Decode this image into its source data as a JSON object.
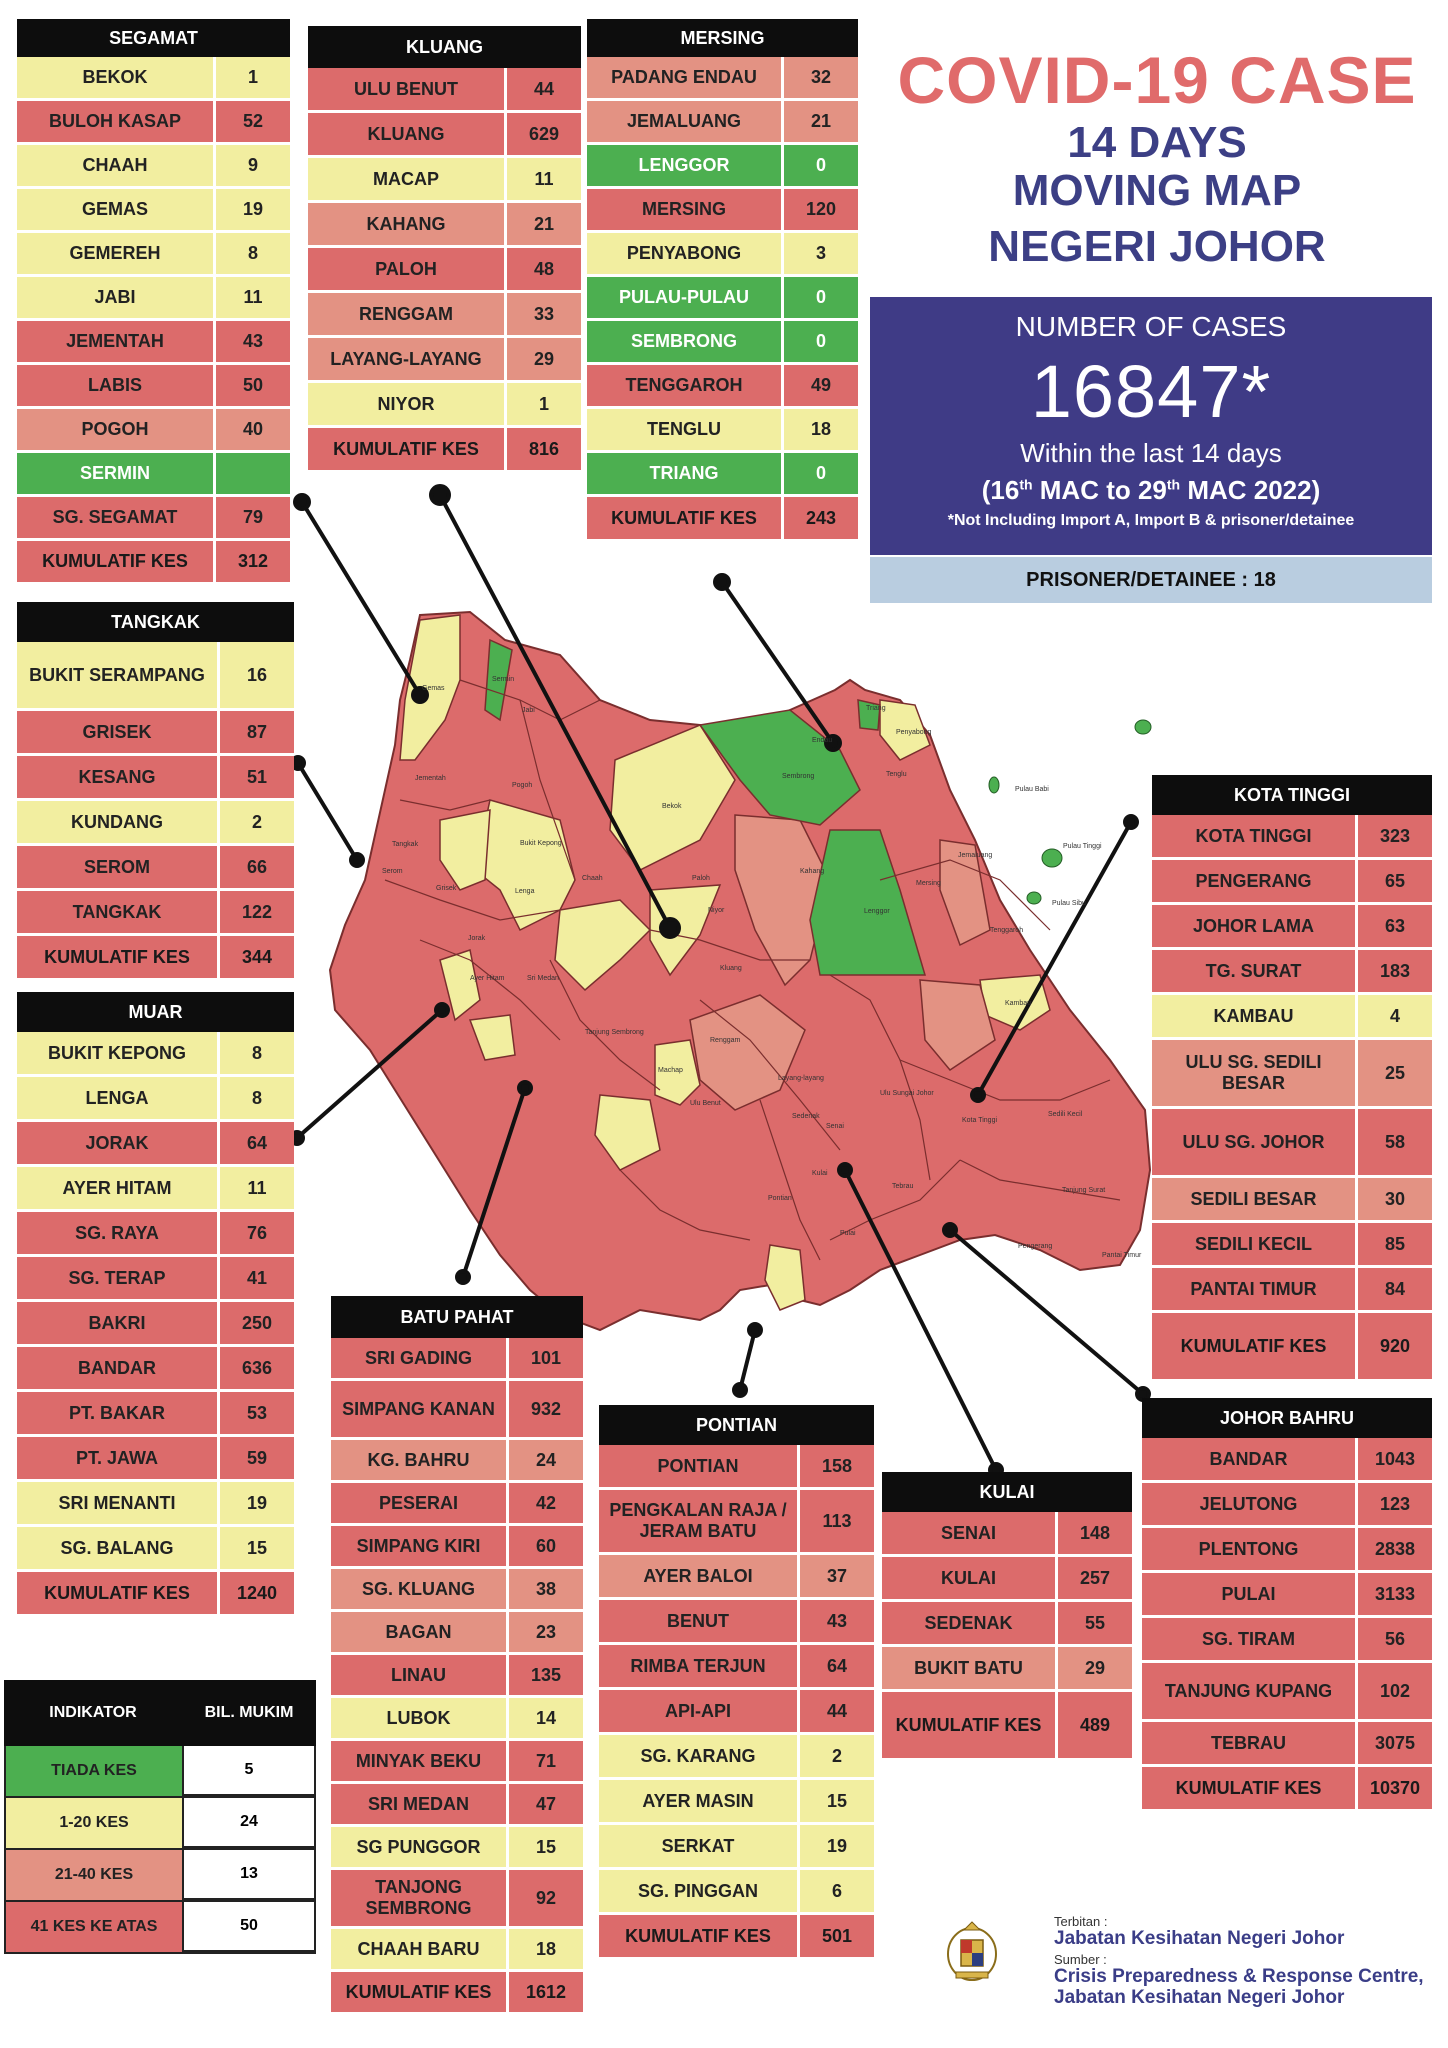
{
  "title": {
    "line1": "COVID-19 CASE",
    "line2": "14 DAYS",
    "line3": "MOVING MAP",
    "line4": "NEGERI JOHOR"
  },
  "cases": {
    "label": "NUMBER OF CASES",
    "total": "16847*",
    "within": "Within the last 14 days",
    "period_open": "(16",
    "period_sup1": "th",
    "period_mid": " MAC to 29",
    "period_sup2": "th",
    "period_close": " MAC 2022)",
    "note": "*Not Including Import A, Import B & prisoner/detainee",
    "prisoner": "PRISONER/DETAINEE : 18"
  },
  "colors": {
    "red": "#dc6b6b",
    "yellow": "#f2eea0",
    "salmon": "#e39283",
    "green": "#4caf50",
    "navy": "#3f3b86"
  },
  "districts": [
    {
      "id": "segamat",
      "name": "SEGAMAT",
      "rows": [
        {
          "n": "BEKOK",
          "v": "1",
          "c": "yel"
        },
        {
          "n": "BULOH KASAP",
          "v": "52",
          "c": "red"
        },
        {
          "n": "CHAAH",
          "v": "9",
          "c": "yel"
        },
        {
          "n": "GEMAS",
          "v": "19",
          "c": "yel"
        },
        {
          "n": "GEMEREH",
          "v": "8",
          "c": "yel"
        },
        {
          "n": "JABI",
          "v": "11",
          "c": "yel"
        },
        {
          "n": "JEMENTAH",
          "v": "43",
          "c": "red"
        },
        {
          "n": "LABIS",
          "v": "50",
          "c": "red"
        },
        {
          "n": "POGOH",
          "v": "40",
          "c": "sal"
        },
        {
          "n": "SERMIN",
          "v": "",
          "c": "grn"
        },
        {
          "n": "SG. SEGAMAT",
          "v": "79",
          "c": "red"
        },
        {
          "n": "KUMULATIF KES",
          "v": "312",
          "c": "red",
          "k": 1
        }
      ]
    },
    {
      "id": "kluang",
      "name": "KLUANG",
      "rows": [
        {
          "n": "ULU BENUT",
          "v": "44",
          "c": "red"
        },
        {
          "n": "KLUANG",
          "v": "629",
          "c": "red"
        },
        {
          "n": "MACAP",
          "v": "11",
          "c": "yel"
        },
        {
          "n": "KAHANG",
          "v": "21",
          "c": "sal"
        },
        {
          "n": "PALOH",
          "v": "48",
          "c": "red"
        },
        {
          "n": "RENGGAM",
          "v": "33",
          "c": "sal"
        },
        {
          "n": "LAYANG-LAYANG",
          "v": "29",
          "c": "sal"
        },
        {
          "n": "NIYOR",
          "v": "1",
          "c": "yel"
        },
        {
          "n": "KUMULATIF KES",
          "v": "816",
          "c": "red",
          "k": 1
        }
      ]
    },
    {
      "id": "mersing",
      "name": "MERSING",
      "rows": [
        {
          "n": "PADANG ENDAU",
          "v": "32",
          "c": "sal"
        },
        {
          "n": "JEMALUANG",
          "v": "21",
          "c": "sal"
        },
        {
          "n": "LENGGOR",
          "v": "0",
          "c": "grn"
        },
        {
          "n": "MERSING",
          "v": "120",
          "c": "red"
        },
        {
          "n": "PENYABONG",
          "v": "3",
          "c": "yel"
        },
        {
          "n": "PULAU-PULAU",
          "v": "0",
          "c": "grn"
        },
        {
          "n": "SEMBRONG",
          "v": "0",
          "c": "grn"
        },
        {
          "n": "TENGGAROH",
          "v": "49",
          "c": "red"
        },
        {
          "n": "TENGLU",
          "v": "18",
          "c": "yel"
        },
        {
          "n": "TRIANG",
          "v": "0",
          "c": "grn"
        },
        {
          "n": "KUMULATIF KES",
          "v": "243",
          "c": "red",
          "k": 1
        }
      ]
    },
    {
      "id": "tangkak",
      "name": "TANGKAK",
      "rows": [
        {
          "n": "BUKIT SERAMPANG",
          "v": "16",
          "c": "yel"
        },
        {
          "n": "GRISEK",
          "v": "87",
          "c": "red"
        },
        {
          "n": "KESANG",
          "v": "51",
          "c": "red"
        },
        {
          "n": "KUNDANG",
          "v": "2",
          "c": "yel"
        },
        {
          "n": "SEROM",
          "v": "66",
          "c": "red"
        },
        {
          "n": "TANGKAK",
          "v": "122",
          "c": "red"
        },
        {
          "n": "KUMULATIF KES",
          "v": "344",
          "c": "red",
          "k": 1
        }
      ]
    },
    {
      "id": "muar",
      "name": "MUAR",
      "rows": [
        {
          "n": "BUKIT KEPONG",
          "v": "8",
          "c": "yel"
        },
        {
          "n": "LENGA",
          "v": "8",
          "c": "yel"
        },
        {
          "n": "JORAK",
          "v": "64",
          "c": "red"
        },
        {
          "n": "AYER HITAM",
          "v": "11",
          "c": "yel"
        },
        {
          "n": "SG. RAYA",
          "v": "76",
          "c": "red"
        },
        {
          "n": "SG. TERAP",
          "v": "41",
          "c": "red"
        },
        {
          "n": "BAKRI",
          "v": "250",
          "c": "red"
        },
        {
          "n": "BANDAR",
          "v": "636",
          "c": "red"
        },
        {
          "n": "PT. BAKAR",
          "v": "53",
          "c": "red"
        },
        {
          "n": "PT. JAWA",
          "v": "59",
          "c": "red"
        },
        {
          "n": "SRI MENANTI",
          "v": "19",
          "c": "yel"
        },
        {
          "n": "SG. BALANG",
          "v": "15",
          "c": "yel"
        },
        {
          "n": "KUMULATIF KES",
          "v": "1240",
          "c": "red",
          "k": 1
        }
      ]
    },
    {
      "id": "kotatinggi",
      "name": "KOTA TINGGI",
      "rows": [
        {
          "n": "KOTA TINGGI",
          "v": "323",
          "c": "red"
        },
        {
          "n": "PENGERANG",
          "v": "65",
          "c": "red"
        },
        {
          "n": "JOHOR LAMA",
          "v": "63",
          "c": "red"
        },
        {
          "n": "TG. SURAT",
          "v": "183",
          "c": "red"
        },
        {
          "n": "KAMBAU",
          "v": "4",
          "c": "yel"
        },
        {
          "n": "ULU SG. SEDILI BESAR",
          "v": "25",
          "c": "sal"
        },
        {
          "n": "ULU  SG. JOHOR",
          "v": "58",
          "c": "red"
        },
        {
          "n": "SEDILI BESAR",
          "v": "30",
          "c": "sal"
        },
        {
          "n": "SEDILI KECIL",
          "v": "85",
          "c": "red"
        },
        {
          "n": "PANTAI TIMUR",
          "v": "84",
          "c": "red"
        },
        {
          "n": "KUMULATIF KES",
          "v": "920",
          "c": "red",
          "k": 1
        }
      ]
    },
    {
      "id": "batupahat",
      "name": "BATU PAHAT",
      "rows": [
        {
          "n": "SRI GADING",
          "v": "101",
          "c": "red"
        },
        {
          "n": "SIMPANG KANAN",
          "v": "932",
          "c": "red"
        },
        {
          "n": "KG. BAHRU",
          "v": "24",
          "c": "sal"
        },
        {
          "n": "PESERAI",
          "v": "42",
          "c": "red"
        },
        {
          "n": "SIMPANG KIRI",
          "v": "60",
          "c": "red"
        },
        {
          "n": "SG. KLUANG",
          "v": "38",
          "c": "sal"
        },
        {
          "n": "BAGAN",
          "v": "23",
          "c": "sal"
        },
        {
          "n": "LINAU",
          "v": "135",
          "c": "red"
        },
        {
          "n": "LUBOK",
          "v": "14",
          "c": "yel"
        },
        {
          "n": "MINYAK BEKU",
          "v": "71",
          "c": "red"
        },
        {
          "n": "SRI MEDAN",
          "v": "47",
          "c": "red"
        },
        {
          "n": "SG PUNGGOR",
          "v": "15",
          "c": "yel"
        },
        {
          "n": "TANJONG SEMBRONG",
          "v": "92",
          "c": "red"
        },
        {
          "n": "CHAAH BARU",
          "v": "18",
          "c": "yel"
        },
        {
          "n": "KUMULATIF KES",
          "v": "1612",
          "c": "red",
          "k": 1
        }
      ]
    },
    {
      "id": "pontian",
      "name": "PONTIAN",
      "rows": [
        {
          "n": "PONTIAN",
          "v": "158",
          "c": "red"
        },
        {
          "n": "PENGKALAN RAJA / JERAM BATU",
          "v": "113",
          "c": "red"
        },
        {
          "n": "AYER BALOI",
          "v": "37",
          "c": "sal"
        },
        {
          "n": "BENUT",
          "v": "43",
          "c": "red"
        },
        {
          "n": "RIMBA TERJUN",
          "v": "64",
          "c": "red"
        },
        {
          "n": "API-API",
          "v": "44",
          "c": "red"
        },
        {
          "n": "SG. KARANG",
          "v": "2",
          "c": "yel"
        },
        {
          "n": "AYER MASIN",
          "v": "15",
          "c": "yel"
        },
        {
          "n": "SERKAT",
          "v": "19",
          "c": "yel"
        },
        {
          "n": "SG. PINGGAN",
          "v": "6",
          "c": "yel"
        },
        {
          "n": "KUMULATIF KES",
          "v": "501",
          "c": "red",
          "k": 1
        }
      ]
    },
    {
      "id": "kulai",
      "name": "KULAI",
      "rows": [
        {
          "n": "SENAI",
          "v": "148",
          "c": "red"
        },
        {
          "n": "KULAI",
          "v": "257",
          "c": "red"
        },
        {
          "n": "SEDENAK",
          "v": "55",
          "c": "red"
        },
        {
          "n": "BUKIT BATU",
          "v": "29",
          "c": "sal"
        },
        {
          "n": "KUMULATIF KES",
          "v": "489",
          "c": "red",
          "k": 1
        }
      ]
    },
    {
      "id": "johorbahru",
      "name": "JOHOR BAHRU",
      "rows": [
        {
          "n": "BANDAR",
          "v": "1043",
          "c": "red"
        },
        {
          "n": "JELUTONG",
          "v": "123",
          "c": "red"
        },
        {
          "n": "PLENTONG",
          "v": "2838",
          "c": "red"
        },
        {
          "n": "PULAI",
          "v": "3133",
          "c": "red"
        },
        {
          "n": "SG. TIRAM",
          "v": "56",
          "c": "red"
        },
        {
          "n": "TANJUNG KUPANG",
          "v": "102",
          "c": "red"
        },
        {
          "n": "TEBRAU",
          "v": "3075",
          "c": "red"
        },
        {
          "n": "KUMULATIF KES",
          "v": "10370",
          "c": "red",
          "k": 1
        }
      ]
    }
  ],
  "legend": {
    "h1": "INDIKATOR",
    "h2": "BIL. MUKIM",
    "rows": [
      {
        "label": "TIADA KES",
        "count": "5",
        "c": "grn"
      },
      {
        "label": "1-20 KES",
        "count": "24",
        "c": "yel"
      },
      {
        "label": "21-40 KES",
        "count": "13",
        "c": "sal"
      },
      {
        "label": "41 KES KE ATAS",
        "count": "50",
        "c": "red"
      }
    ]
  },
  "credits": {
    "terbitan": "Terbitan :",
    "publisher": "Jabatan Kesihatan Negeri Johor",
    "sumber": "Sumber :",
    "source1": "Crisis Preparedness & Response Centre,",
    "source2": "Jabatan Kesihatan Negeri Johor"
  },
  "map_labels": [
    "Gemas",
    "Bukit Kepong",
    "Lenga",
    "Jementah",
    "Pogoh",
    "Jabi",
    "Sermin",
    "Bekok",
    "Paloh",
    "Kahang",
    "Lenggor",
    "Mersing",
    "Sembrong",
    "Chaah",
    "Niyor",
    "Kluang",
    "Renggam",
    "Tangkak",
    "Grisek",
    "Serom",
    "Jorak",
    "Ayer Hitam",
    "Sri Medan",
    "Tanjung Sembrong",
    "Machap",
    "Ulu Benut",
    "Layang-layang",
    "Sedenak",
    "Senai",
    "Kulai",
    "Pontian",
    "Ulu Sungai Johor",
    "Kota Tinggi",
    "Tebrau",
    "Pengerang",
    "Sedili Kecil",
    "Tanjung Surat",
    "Pantai Timur",
    "Jemaluang",
    "Tenggaroh",
    "Triang",
    "Penyabong",
    "Tenglu",
    "Kambau",
    "Pulai",
    "Endau",
    "Pulau Babi",
    "Pulau Tinggi",
    "Pulau Sibu"
  ]
}
